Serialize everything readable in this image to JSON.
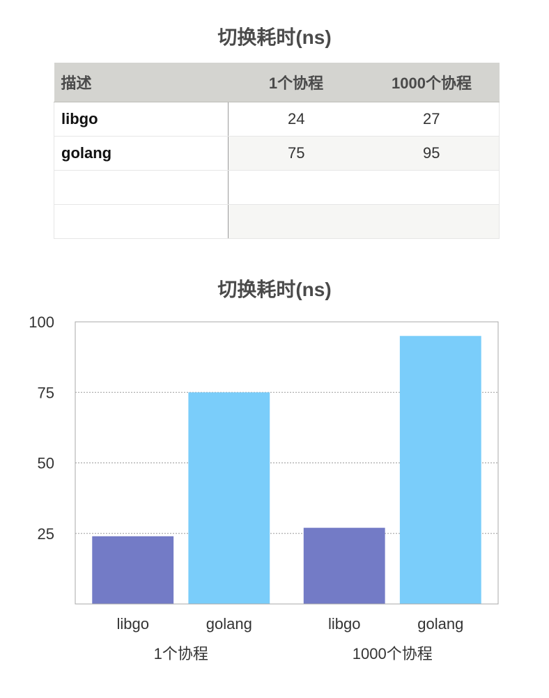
{
  "table": {
    "title": "切换耗时(ns)",
    "headers": [
      "描述",
      "1个协程",
      "1000个协程"
    ],
    "rows": [
      [
        "libgo",
        "24",
        "27"
      ],
      [
        "golang",
        "75",
        "95"
      ],
      [
        "",
        "",
        ""
      ],
      [
        "",
        "",
        ""
      ]
    ]
  },
  "chart_data": {
    "type": "bar",
    "title": "切换耗时(ns)",
    "categories": [
      "1个协程",
      "1000个协程"
    ],
    "series": [
      {
        "name": "libgo",
        "values": [
          24,
          27
        ],
        "color": "#737bc6"
      },
      {
        "name": "golang",
        "values": [
          75,
          95
        ],
        "color": "#7acdfa"
      }
    ],
    "ylim": [
      0,
      100
    ],
    "yticks": [
      25,
      50,
      75,
      100
    ],
    "grid": true,
    "legend": "none"
  }
}
